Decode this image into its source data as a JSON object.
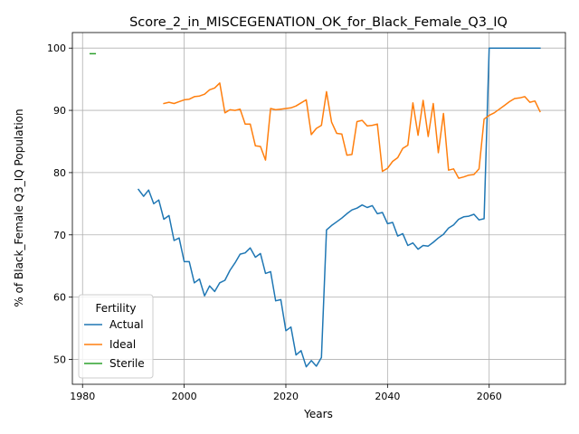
{
  "chart_data": {
    "type": "line",
    "title": "Score_2_in_MISCEGENATION_OK_for_Black_Female_Q3_IQ",
    "xlabel": "Years",
    "ylabel": "% of Black_Female Q3_IQ Population",
    "xlim": [
      1978,
      2075
    ],
    "ylim": [
      46,
      102.5
    ],
    "xticks": [
      1980,
      2000,
      2020,
      2040,
      2060
    ],
    "yticks": [
      50,
      60,
      70,
      80,
      90,
      100
    ],
    "grid": true,
    "legend": {
      "title": "Fertility",
      "position": "lower-left"
    },
    "series": [
      {
        "name": "Actual",
        "color": "#1f77b4",
        "x": [
          1991,
          1992,
          1993,
          1994,
          1995,
          1996,
          1997,
          1998,
          1999,
          2000,
          2001,
          2002,
          2003,
          2004,
          2005,
          2006,
          2007,
          2008,
          2009,
          2010,
          2011,
          2012,
          2013,
          2014,
          2015,
          2016,
          2017,
          2018,
          2019,
          2020,
          2021,
          2022,
          2023,
          2024,
          2025,
          2026,
          2027,
          2028,
          2029,
          2030,
          2031,
          2032,
          2033,
          2034,
          2035,
          2036,
          2037,
          2038,
          2039,
          2040,
          2041,
          2042,
          2043,
          2044,
          2045,
          2046,
          2047,
          2048,
          2049,
          2050,
          2051,
          2052,
          2053,
          2054,
          2055,
          2056,
          2057,
          2058,
          2059,
          2060,
          2061,
          2062,
          2063,
          2064,
          2065,
          2066,
          2067,
          2068,
          2069,
          2070
        ],
        "y": [
          77.3,
          76.2,
          77.2,
          75.0,
          75.6,
          72.5,
          73.1,
          69.1,
          69.5,
          65.7,
          65.7,
          62.3,
          62.9,
          60.2,
          61.8,
          60.9,
          62.3,
          62.7,
          64.3,
          65.5,
          66.9,
          67.1,
          67.9,
          66.4,
          67.0,
          63.8,
          64.1,
          59.4,
          59.6,
          54.6,
          55.2,
          50.7,
          51.4,
          48.8,
          49.8,
          48.9,
          50.3,
          70.8,
          71.5,
          72.1,
          72.7,
          73.4,
          74.0,
          74.3,
          74.8,
          74.4,
          74.7,
          73.4,
          73.6,
          71.8,
          72.0,
          69.8,
          70.2,
          68.3,
          68.7,
          67.7,
          68.3,
          68.2,
          68.8,
          69.5,
          70.1,
          71.1,
          71.6,
          72.5,
          72.9,
          73.0,
          73.3,
          72.4,
          72.6,
          100.0,
          100.0,
          100.0,
          100.0,
          100.0,
          100.0,
          100.0,
          100.0,
          100.0,
          100.0,
          100.0
        ]
      },
      {
        "name": "Ideal",
        "color": "#ff7f0e",
        "x": [
          1996,
          1997,
          1998,
          1999,
          2000,
          2001,
          2002,
          2003,
          2004,
          2005,
          2006,
          2007,
          2008,
          2009,
          2010,
          2011,
          2012,
          2013,
          2014,
          2015,
          2016,
          2017,
          2018,
          2019,
          2020,
          2021,
          2022,
          2023,
          2024,
          2025,
          2026,
          2027,
          2028,
          2029,
          2030,
          2031,
          2032,
          2033,
          2034,
          2035,
          2036,
          2037,
          2038,
          2039,
          2040,
          2041,
          2042,
          2043,
          2044,
          2045,
          2046,
          2047,
          2048,
          2049,
          2050,
          2051,
          2052,
          2053,
          2054,
          2055,
          2056,
          2057,
          2058,
          2059,
          2060,
          2061,
          2062,
          2063,
          2064,
          2065,
          2066,
          2067,
          2068,
          2069,
          2070
        ],
        "y": [
          91.1,
          91.3,
          91.1,
          91.4,
          91.7,
          91.8,
          92.2,
          92.3,
          92.6,
          93.3,
          93.6,
          94.4,
          89.6,
          90.1,
          90.0,
          90.2,
          87.8,
          87.8,
          84.3,
          84.2,
          82.0,
          90.3,
          90.1,
          90.2,
          90.3,
          90.4,
          90.7,
          91.2,
          91.7,
          86.1,
          87.1,
          87.6,
          93.0,
          88.1,
          86.3,
          86.2,
          82.8,
          82.9,
          88.2,
          88.4,
          87.5,
          87.6,
          87.8,
          80.2,
          80.7,
          81.8,
          82.4,
          83.9,
          84.4,
          91.2,
          86.0,
          91.6,
          85.8,
          91.1,
          83.2,
          89.5,
          80.4,
          80.6,
          79.1,
          79.3,
          79.6,
          79.7,
          80.6,
          88.6,
          89.2,
          89.6,
          90.2,
          90.8,
          91.4,
          91.9,
          92.0,
          92.2,
          91.3,
          91.5,
          89.8
        ]
      },
      {
        "name": "Sterile",
        "color": "#2ca02c",
        "x": [
          1981.5,
          1982.5
        ],
        "y": [
          99.1,
          99.1
        ]
      }
    ]
  }
}
